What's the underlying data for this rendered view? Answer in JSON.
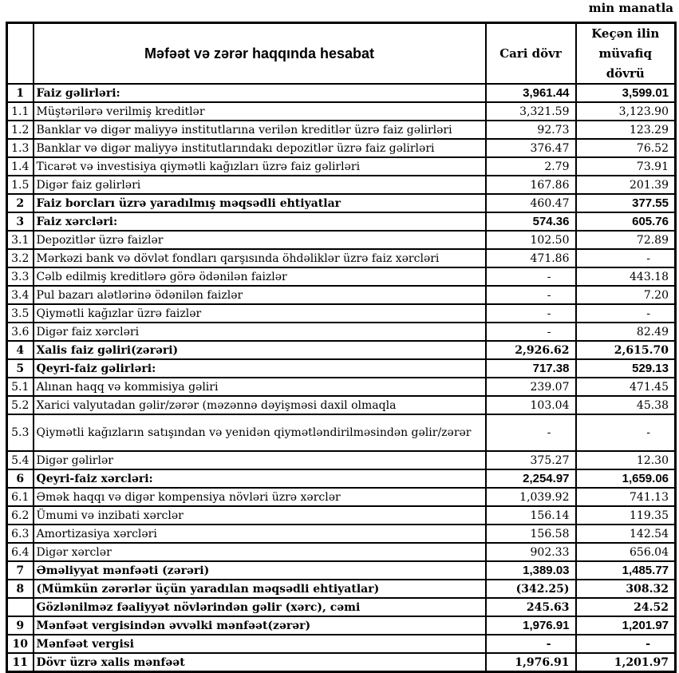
{
  "page": {
    "unit_note": "min manatla"
  },
  "table": {
    "header": {
      "title": "Məfəət və zərər haqqında hesabat",
      "col_current": "Cari dövr",
      "col_previous": "Keçən ilin müvafiq dövrü"
    },
    "rows": [
      {
        "n": "1",
        "label": "Faiz gəlirləri:",
        "cur": "3,961.44",
        "prev": "3,599.01",
        "bold": true,
        "curStyle": "sb",
        "prevStyle": "sb",
        "tall": false
      },
      {
        "n": "1.1",
        "label": "Müştərilərə verilmiş kreditlər",
        "cur": "3,321.59",
        "prev": "3,123.90",
        "bold": false,
        "curStyle": "",
        "prevStyle": "",
        "tall": false
      },
      {
        "n": "1.2",
        "label": "Banklar və digər maliyyə institutlarına verilən kreditlər üzrə faiz gəlirləri",
        "cur": "92.73",
        "prev": "123.29",
        "bold": false,
        "curStyle": "",
        "prevStyle": "",
        "tall": false
      },
      {
        "n": "1.3",
        "label": "Banklar və digər maliyyə institutlarındakı depozitlər üzrə faiz gəlirləri",
        "cur": "376.47",
        "prev": "76.52",
        "bold": false,
        "curStyle": "",
        "prevStyle": "",
        "tall": false
      },
      {
        "n": "1.4",
        "label": "Ticarət və investisiya qiymətli kağızları üzrə faiz gəlirləri",
        "cur": "2.79",
        "prev": "73.91",
        "bold": false,
        "curStyle": "",
        "prevStyle": "",
        "tall": false
      },
      {
        "n": "1.5",
        "label": "Digər faiz gəlirləri",
        "cur": "167.86",
        "prev": "201.39",
        "bold": false,
        "curStyle": "",
        "prevStyle": "",
        "tall": false
      },
      {
        "n": "2",
        "label": "Faiz borcları üzrə yaradılmış məqsədli ehtiyatlar",
        "cur": "460.47",
        "prev": "377.55",
        "bold": true,
        "curStyle": "",
        "prevStyle": "sb",
        "tall": false
      },
      {
        "n": "3",
        "label": "Faiz xərcləri:",
        "cur": "574.36",
        "prev": "605.76",
        "bold": true,
        "curStyle": "sb",
        "prevStyle": "sb",
        "tall": false
      },
      {
        "n": "3.1",
        "label": "Depozitlər üzrə faizlər",
        "cur": "102.50",
        "prev": "72.89",
        "bold": false,
        "curStyle": "",
        "prevStyle": "",
        "tall": false
      },
      {
        "n": "3.2",
        "label": "Mərkəzi bank və dövlət fondları qarşısında öhdəliklər üzrə faiz xərcləri",
        "cur": "471.86",
        "prev": "-",
        "bold": false,
        "curStyle": "",
        "prevStyle": "",
        "tall": false
      },
      {
        "n": "3.3",
        "label": "Cəlb edilmiş kreditlərə görə ödənilən faizlər",
        "cur": "-",
        "prev": "443.18",
        "bold": false,
        "curStyle": "",
        "prevStyle": "",
        "tall": false
      },
      {
        "n": "3.4",
        "label": "Pul bazarı alətlərinə ödənilən faizlər",
        "cur": "-",
        "prev": "7.20",
        "bold": false,
        "curStyle": "",
        "prevStyle": "",
        "tall": false
      },
      {
        "n": "3.5",
        "label": "Qiymətli kağızlar üzrə faizlər",
        "cur": "-",
        "prev": "-",
        "bold": false,
        "curStyle": "",
        "prevStyle": "",
        "tall": false
      },
      {
        "n": "3.6",
        "label": "Digər faiz xərcləri",
        "cur": "-",
        "prev": "82.49",
        "bold": false,
        "curStyle": "",
        "prevStyle": "",
        "tall": false
      },
      {
        "n": "4",
        "label": "Xalis faiz gəliri(zərəri)",
        "cur": "2,926.62",
        "prev": "2,615.70",
        "bold": true,
        "curStyle": "fb",
        "prevStyle": "fb",
        "tall": false
      },
      {
        "n": "5",
        "label": "Qeyri-faiz gəlirləri:",
        "cur": "717.38",
        "prev": "529.13",
        "bold": true,
        "curStyle": "sb",
        "prevStyle": "sb",
        "tall": false
      },
      {
        "n": "5.1",
        "label": "Alınan haqq və kommisiya gəliri",
        "cur": "239.07",
        "prev": "471.45",
        "bold": false,
        "curStyle": "",
        "prevStyle": "",
        "tall": false
      },
      {
        "n": "5.2",
        "label": "Xarici valyutadan gəlir/zərər (məzənnə dəyişməsi daxil olmaqla",
        "cur": "103.04",
        "prev": "45.38",
        "bold": false,
        "curStyle": "",
        "prevStyle": "",
        "tall": false
      },
      {
        "n": "5.3",
        "label": "Qiymətli kağızların satışından və yenidən qiymətləndirilməsindən gəlir/zərər",
        "cur": "-",
        "prev": "-",
        "bold": false,
        "curStyle": "",
        "prevStyle": "",
        "tall": true
      },
      {
        "n": "5.4",
        "label": "Digər gəlirlər",
        "cur": "375.27",
        "prev": "12.30",
        "bold": false,
        "curStyle": "",
        "prevStyle": "",
        "tall": false
      },
      {
        "n": "6",
        "label": "Qeyri-faiz xərcləri:",
        "cur": "2,254.97",
        "prev": "1,659.06",
        "bold": true,
        "curStyle": "sb",
        "prevStyle": "sb",
        "tall": false
      },
      {
        "n": "6.1",
        "label": "Əmək haqqı və digər kompensiya növləri üzrə xərclər",
        "cur": "1,039.92",
        "prev": "741.13",
        "bold": false,
        "curStyle": "",
        "prevStyle": "",
        "tall": false
      },
      {
        "n": "6.2",
        "label": "Ümumi və inzibati xərclər",
        "cur": "156.14",
        "prev": "119.35",
        "bold": false,
        "curStyle": "",
        "prevStyle": "",
        "tall": false
      },
      {
        "n": "6.3",
        "label": "Amortizasiya xərcləri",
        "cur": "156.58",
        "prev": "142.54",
        "bold": false,
        "curStyle": "",
        "prevStyle": "",
        "tall": false
      },
      {
        "n": "6.4",
        "label": "Digər xərclər",
        "cur": "902.33",
        "prev": "656.04",
        "bold": false,
        "curStyle": "",
        "prevStyle": "",
        "tall": false
      },
      {
        "n": "7",
        "label": "Əməliyyat mənfəəti (zərəri)",
        "cur": "1,389.03",
        "prev": "1,485.77",
        "bold": true,
        "curStyle": "sb",
        "prevStyle": "sb",
        "tall": false
      },
      {
        "n": "8",
        "label": "(Mümkün zərərlər üçün yaradılan məqsədli ehtiyatlar)",
        "cur": "(342.25)",
        "prev": "308.32",
        "bold": true,
        "curStyle": "fb",
        "prevStyle": "fb",
        "tall": false
      },
      {
        "n": "",
        "label": "Gözlənilməz fəaliyyət növlərindən gəlir (xərc), cəmi",
        "cur": "245.63",
        "prev": "24.52",
        "bold": true,
        "curStyle": "fb",
        "prevStyle": "fb",
        "tall": false
      },
      {
        "n": "9",
        "label": "Mənfəət vergisindən əvvəlki mənfəət(zərər)",
        "cur": "1,976.91",
        "prev": "1,201.97",
        "bold": true,
        "curStyle": "sb",
        "prevStyle": "sb",
        "tall": false
      },
      {
        "n": "10",
        "label": "Mənfəət vergisi",
        "cur": "-",
        "prev": "-",
        "bold": true,
        "curStyle": "fb",
        "prevStyle": "fb",
        "tall": false
      },
      {
        "n": "11",
        "label": "Dövr üzrə xalis mənfəət",
        "cur": "1,976.91",
        "prev": "1,201.97",
        "bold": true,
        "curStyle": "fb",
        "prevStyle": "fb",
        "tall": false
      }
    ]
  }
}
